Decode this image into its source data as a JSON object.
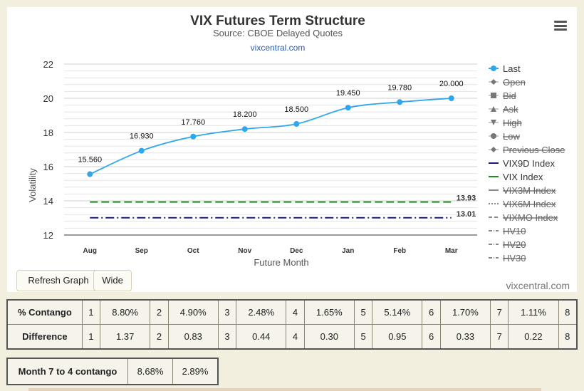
{
  "chart_data": {
    "type": "line",
    "title": "VIX Futures Term Structure",
    "subtitle": "Source: CBOE Delayed Quotes",
    "source_link": "vixcentral.com",
    "xlabel": "Future Month",
    "ylabel": "Volatility",
    "categories": [
      "Aug",
      "Sep",
      "Oct",
      "Nov",
      "Dec",
      "Jan",
      "Feb",
      "Mar"
    ],
    "ylim": [
      12,
      22
    ],
    "yticks": [
      12,
      14,
      16,
      18,
      20,
      22
    ],
    "grid": true,
    "legend_position": "right",
    "series": [
      {
        "name": "Last",
        "values": [
          15.56,
          16.93,
          17.76,
          18.2,
          18.5,
          19.45,
          19.78,
          20.0
        ],
        "labels": [
          "15.560",
          "16.930",
          "17.760",
          "18.200",
          "18.500",
          "19.450",
          "19.780",
          "20.000"
        ],
        "color": "#2fa7ec"
      },
      {
        "name": "VIX9D Index",
        "value": 13.01,
        "label": "13.01",
        "color": "#1a1a8c"
      },
      {
        "name": "VIX Index",
        "value": 13.93,
        "label": "13.93",
        "color": "#1f8c1f"
      }
    ],
    "legend": [
      {
        "name": "Last",
        "symbol": "circle-line",
        "active": true,
        "color": "#2fa7ec"
      },
      {
        "name": "Open",
        "symbol": "diamond",
        "active": false
      },
      {
        "name": "Bid",
        "symbol": "square",
        "active": false
      },
      {
        "name": "Ask",
        "symbol": "triangle",
        "active": false
      },
      {
        "name": "High",
        "symbol": "triangle-down",
        "active": false
      },
      {
        "name": "Low",
        "symbol": "circle",
        "active": false
      },
      {
        "name": "Previous Close",
        "symbol": "diamond",
        "active": false
      },
      {
        "name": "VIX9D Index",
        "symbol": "solid",
        "active": true,
        "color": "#1a1a8c"
      },
      {
        "name": "VIX Index",
        "symbol": "solid",
        "active": true,
        "color": "#1f8c1f"
      },
      {
        "name": "VIX3M Index",
        "symbol": "solid",
        "active": false
      },
      {
        "name": "VIX6M Index",
        "symbol": "dotted",
        "active": false
      },
      {
        "name": "VIXMO Index",
        "symbol": "dashed",
        "active": false
      },
      {
        "name": "HV10",
        "symbol": "dashdot",
        "active": false
      },
      {
        "name": "HV20",
        "symbol": "dashdot",
        "active": false
      },
      {
        "name": "HV30",
        "symbol": "dashdot",
        "active": false
      }
    ]
  },
  "buttons": {
    "refresh": "Refresh Graph",
    "wide": "Wide"
  },
  "credit": "vixcentral.com",
  "contango_table": {
    "rows": [
      {
        "label": "% Contango",
        "cells": [
          [
            "1",
            "8.80%"
          ],
          [
            "2",
            "4.90%"
          ],
          [
            "3",
            "2.48%"
          ],
          [
            "4",
            "1.65%"
          ],
          [
            "5",
            "5.14%"
          ],
          [
            "6",
            "1.70%"
          ],
          [
            "7",
            "1.11%"
          ],
          [
            "8",
            ""
          ]
        ]
      },
      {
        "label": "Difference",
        "cells": [
          [
            "1",
            "1.37"
          ],
          [
            "2",
            "0.83"
          ],
          [
            "3",
            "0.44"
          ],
          [
            "4",
            "0.30"
          ],
          [
            "5",
            "0.95"
          ],
          [
            "6",
            "0.33"
          ],
          [
            "7",
            "0.22"
          ],
          [
            "8",
            ""
          ]
        ]
      }
    ]
  },
  "month_table": {
    "label": "Month 7 to 4 contango",
    "values": [
      "8.68%",
      "2.89%"
    ]
  }
}
